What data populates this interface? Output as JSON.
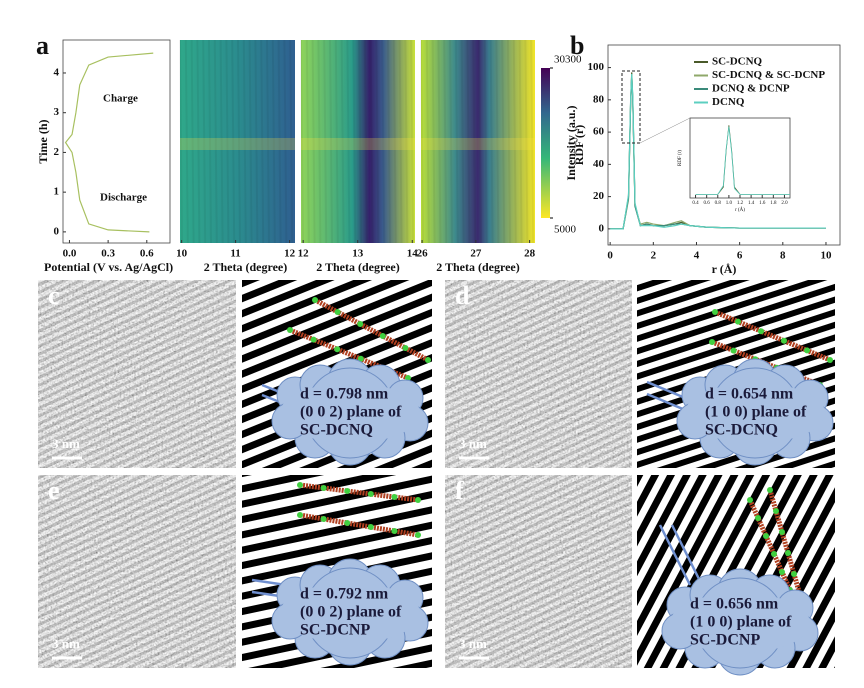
{
  "chart_data": [
    {
      "type": "line",
      "panel": "a",
      "x_label": "Potential (V vs. Ag/AgCl)",
      "y_label": "Time (h)",
      "annotations": [
        "Charge",
        "Discharge"
      ],
      "x": [
        0.62,
        0.3,
        0.15,
        0.08,
        0.05,
        0.02,
        -0.03,
        0.02,
        0.05,
        0.08,
        0.15,
        0.3,
        0.65
      ],
      "series": [
        {
          "color": "#a8c060",
          "values": [
            0.0,
            0.05,
            0.2,
            0.8,
            1.5,
            2.0,
            2.25,
            2.45,
            3.0,
            3.7,
            4.2,
            4.4,
            4.5
          ]
        }
      ],
      "xlim": [
        -0.05,
        0.78
      ],
      "ylim": [
        -0.28,
        4.83
      ],
      "xticks": [
        {
          "value": 0,
          "label": "0.0"
        },
        0.3,
        0.6
      ],
      "yticks": [
        0,
        1,
        2,
        3,
        4
      ]
    },
    {
      "type": "heatmap",
      "x_label": "2 Theta (degree)",
      "xlim": [
        9.97,
        12.1
      ],
      "xticks": [
        10,
        11,
        12
      ]
    },
    {
      "type": "heatmap",
      "x_label": "2 Theta (degree)",
      "xlim": [
        11.96,
        14.05
      ],
      "xticks": [
        12,
        13,
        14
      ]
    },
    {
      "type": "heatmap",
      "x_label": "2 Theta (degree)",
      "xlim": [
        25.98,
        28.1
      ],
      "xticks": [
        26,
        27,
        28
      ]
    },
    {
      "type": "colorbar",
      "y_label": "Intensity (a.u.)",
      "ylim": [
        5000,
        30300
      ],
      "yticks": [
        5000,
        30300
      ]
    },
    {
      "type": "line",
      "panel": "b",
      "x_label": "r (Å)",
      "y_label": "RDF (r)",
      "x": [
        0,
        0.6,
        0.85,
        0.95,
        1.0,
        1.05,
        1.15,
        1.4,
        1.7,
        2.0,
        2.5,
        3.0,
        3.3,
        3.7,
        4.5,
        6,
        8,
        10
      ],
      "series": [
        {
          "name": "SC-DCNQ",
          "color": "#4a5a2a",
          "values": [
            0,
            0,
            20,
            80,
            97,
            80,
            15,
            2,
            3,
            2,
            2,
            3,
            4,
            2,
            1,
            0.5,
            0.5,
            0.5
          ]
        },
        {
          "name": "SC-DCNQ &  SC-DCNP",
          "color": "#8fa86a",
          "values": [
            0,
            0,
            18,
            78,
            96,
            78,
            14,
            3,
            4,
            3,
            2,
            4,
            5,
            2,
            1,
            0.5,
            0.5,
            0.5
          ]
        },
        {
          "name": "DCNQ & DCNP",
          "color": "#3a8a7a",
          "values": [
            0,
            0,
            19,
            79,
            95,
            79,
            14,
            2,
            3,
            2,
            2,
            3,
            3,
            2,
            1,
            0.5,
            0.5,
            0.5
          ]
        },
        {
          "name": "DCNQ",
          "color": "#5ccfc0",
          "values": [
            0,
            0,
            21,
            81,
            96,
            81,
            16,
            2,
            2,
            2,
            1,
            2,
            3,
            2,
            1,
            0.5,
            0.5,
            0.5
          ]
        }
      ],
      "xlim": [
        -0.1,
        10.65
      ],
      "ylim": [
        -10,
        114
      ],
      "xticks": [
        0,
        2,
        4,
        6,
        8,
        10
      ],
      "yticks": [
        0,
        20,
        40,
        60,
        80,
        100
      ]
    },
    {
      "type": "line",
      "x_label": "r (Å)",
      "y_label": "RDF (r)",
      "x": [
        0.4,
        0.8,
        0.9,
        0.95,
        1.0,
        1.05,
        1.1,
        1.2,
        2.1
      ],
      "series": [
        {
          "color": "#4a5a2a",
          "values": [
            0,
            0,
            10,
            60,
            95,
            60,
            10,
            0,
            0
          ]
        },
        {
          "color": "#5ccfc0",
          "values": [
            0,
            0,
            12,
            62,
            93,
            58,
            8,
            0,
            0
          ]
        }
      ],
      "xlim": [
        0.3,
        2.1
      ],
      "ylim": [
        -5,
        105
      ],
      "xticks": [
        0.4,
        0.6,
        0.8,
        {
          "value": 1,
          "label": "1.0"
        },
        1.2,
        1.4,
        1.6,
        1.8,
        {
          "value": 2,
          "label": "2.0"
        }
      ]
    }
  ],
  "micrographs": [
    {
      "label": "c",
      "scale_bar": "3 nm",
      "annotation": [
        "d = 0.798 nm",
        "(0 0 2) plane of",
        "SC-DCNQ"
      ]
    },
    {
      "label": "d",
      "scale_bar": "3 nm",
      "annotation": [
        "d = 0.654 nm",
        "(1 0 0) plane of",
        "SC-DCNQ"
      ]
    },
    {
      "label": "e",
      "scale_bar": "3 nm",
      "annotation": [
        "d = 0.792 nm",
        "(0 0 2) plane of",
        "SC-DCNP"
      ]
    },
    {
      "label": "f",
      "scale_bar": "3 nm",
      "annotation": [
        "d = 0.656 nm",
        "(1 0 0) plane of",
        "SC-DCNP"
      ]
    }
  ]
}
